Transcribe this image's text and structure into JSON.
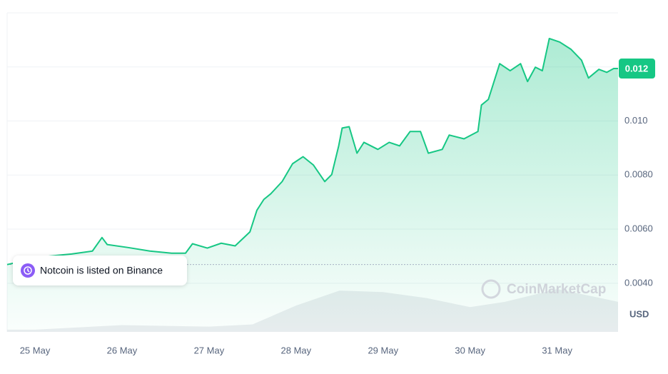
{
  "chart_data": {
    "type": "line",
    "series": [
      {
        "name": "Notcoin",
        "color": "#16c784",
        "x": [
          24.68,
          25.09,
          25.42,
          25.66,
          25.77,
          25.83,
          26.07,
          26.32,
          26.57,
          26.73,
          26.81,
          26.98,
          27.14,
          27.3,
          27.47,
          27.55,
          27.63,
          27.71,
          27.84,
          27.96,
          28.08,
          28.2,
          28.33,
          28.41,
          28.49,
          28.53,
          28.61,
          28.7,
          28.78,
          28.94,
          29.07,
          29.19,
          29.31,
          29.43,
          29.52,
          29.68,
          29.76,
          29.93,
          30.09,
          30.13,
          30.21,
          30.34,
          30.46,
          30.58,
          30.66,
          30.75,
          30.83,
          30.91,
          31.03,
          31.16,
          31.28,
          31.36,
          31.48,
          31.57,
          31.65,
          31.7
        ],
        "values": [
          0.00469,
          0.00498,
          0.00508,
          0.00519,
          0.00569,
          0.00543,
          0.00532,
          0.00519,
          0.00511,
          0.00511,
          0.00546,
          0.0053,
          0.00548,
          0.00538,
          0.0059,
          0.0067,
          0.0071,
          0.00731,
          0.00776,
          0.00842,
          0.00868,
          0.00837,
          0.00776,
          0.00802,
          0.00908,
          0.00974,
          0.00979,
          0.00881,
          0.00921,
          0.00895,
          0.00921,
          0.00908,
          0.00961,
          0.00961,
          0.00881,
          0.00895,
          0.00948,
          0.00934,
          0.00961,
          0.01059,
          0.0108,
          0.01212,
          0.01186,
          0.01212,
          0.01146,
          0.01199,
          0.01186,
          0.01305,
          0.01292,
          0.01265,
          0.01225,
          0.01159,
          0.01191,
          0.0118,
          0.01194,
          0.01194
        ]
      }
    ],
    "volume": {
      "x": [
        24.68,
        25.0,
        26.0,
        27.0,
        27.5,
        28.0,
        28.5,
        29.0,
        29.5,
        30.0,
        30.4,
        31.0,
        31.5,
        31.7
      ],
      "values": [
        3,
        3,
        9,
        7,
        10,
        35,
        55,
        53,
        45,
        33,
        40,
        57,
        45,
        40
      ]
    },
    "current_price": {
      "value": 0.01194,
      "label": "0.012"
    },
    "xlim": [
      24.68,
      31.7
    ],
    "ylim": [
      0.0022,
      0.014
    ],
    "xticks": [
      {
        "value": 25,
        "label": "25 May"
      },
      {
        "value": 26,
        "label": "26 May"
      },
      {
        "value": 27,
        "label": "27 May"
      },
      {
        "value": 28,
        "label": "28 May"
      },
      {
        "value": 29,
        "label": "29 May"
      },
      {
        "value": 30,
        "label": "30 May"
      },
      {
        "value": 31,
        "label": "31 May"
      }
    ],
    "yticks": [
      {
        "value": 0.004,
        "label": "0.0040"
      },
      {
        "value": 0.006,
        "label": "0.0060"
      },
      {
        "value": 0.008,
        "label": "0.0080"
      },
      {
        "value": 0.01,
        "label": "0.010"
      },
      {
        "value": 0.012,
        "label": "0.012"
      }
    ],
    "y_unit": "USD",
    "annotation": "Notcoin is listed on Binance",
    "watermark": "CoinMarketCap",
    "grid": true
  }
}
